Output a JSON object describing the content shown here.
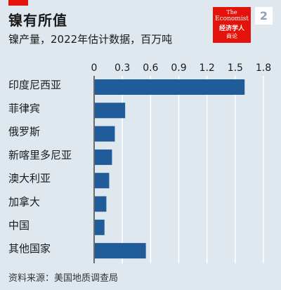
{
  "title": "镍有所值",
  "subtitle": "镍产量，2022年估计数据，百万吨",
  "badge": "2",
  "logo": {
    "en_line1": "The",
    "en_line2": "Economist",
    "zh_line1": "经济学人",
    "zh_line2": "商论"
  },
  "source": "资料来源：美国地质调查局",
  "colors": {
    "bar": "#1f5c99",
    "accent": "#e3120b",
    "background": "#dfe8ef",
    "grid": "#ffffff"
  },
  "chart_data": {
    "type": "bar",
    "orientation": "horizontal",
    "categories": [
      "印度尼西亚",
      "菲律宾",
      "俄罗斯",
      "新喀里多尼亚",
      "澳大利亚",
      "加拿大",
      "中国",
      "其他国家"
    ],
    "values": [
      1.6,
      0.33,
      0.22,
      0.19,
      0.16,
      0.13,
      0.11,
      0.55
    ],
    "xlim": [
      0,
      1.8
    ],
    "ticks": [
      "0",
      "0.3",
      "0.6",
      "0.9",
      "1.2",
      "1.5",
      "1.8"
    ],
    "tick_position": "top",
    "grid": true
  }
}
